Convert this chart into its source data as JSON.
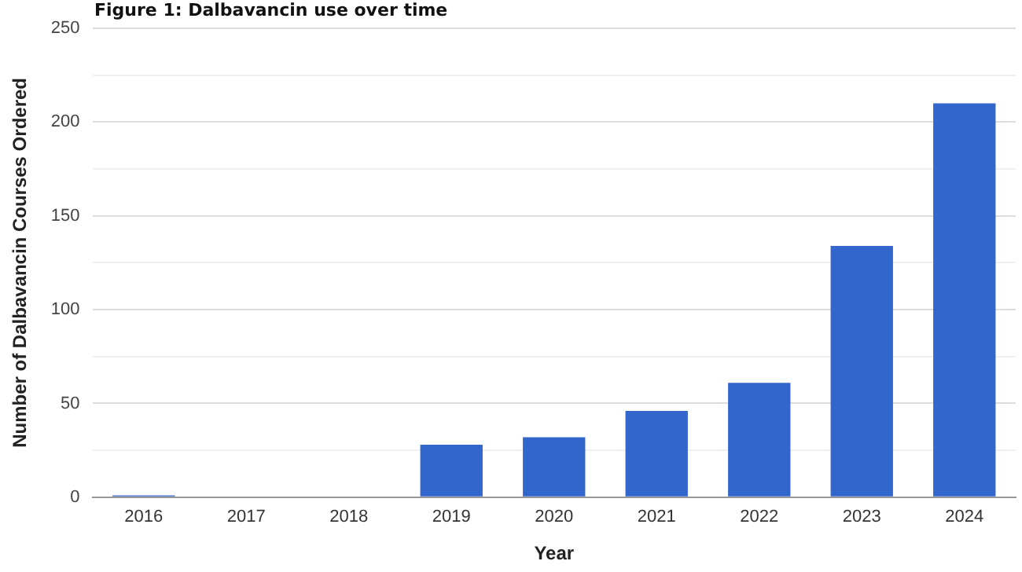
{
  "chart_data": {
    "type": "bar",
    "title": "Figure 1: Dalbavancin use over time",
    "xlabel": "Year",
    "ylabel": "Number of Dalbavancin Courses Ordered",
    "categories": [
      "2016",
      "2017",
      "2018",
      "2019",
      "2020",
      "2021",
      "2022",
      "2023",
      "2024"
    ],
    "values": [
      1,
      0,
      0,
      28,
      32,
      46,
      61,
      134,
      210
    ],
    "color": "#3366cc",
    "ylim": [
      0,
      250
    ],
    "yticks": [
      0,
      {
        "value": 25,
        "label": null
      },
      50,
      {
        "value": 75,
        "label": null
      },
      100,
      {
        "value": 125,
        "label": null
      },
      150,
      {
        "value": 175,
        "label": null
      },
      200,
      {
        "value": 225,
        "label": null
      },
      250
    ],
    "grid": "y",
    "legend": false
  }
}
